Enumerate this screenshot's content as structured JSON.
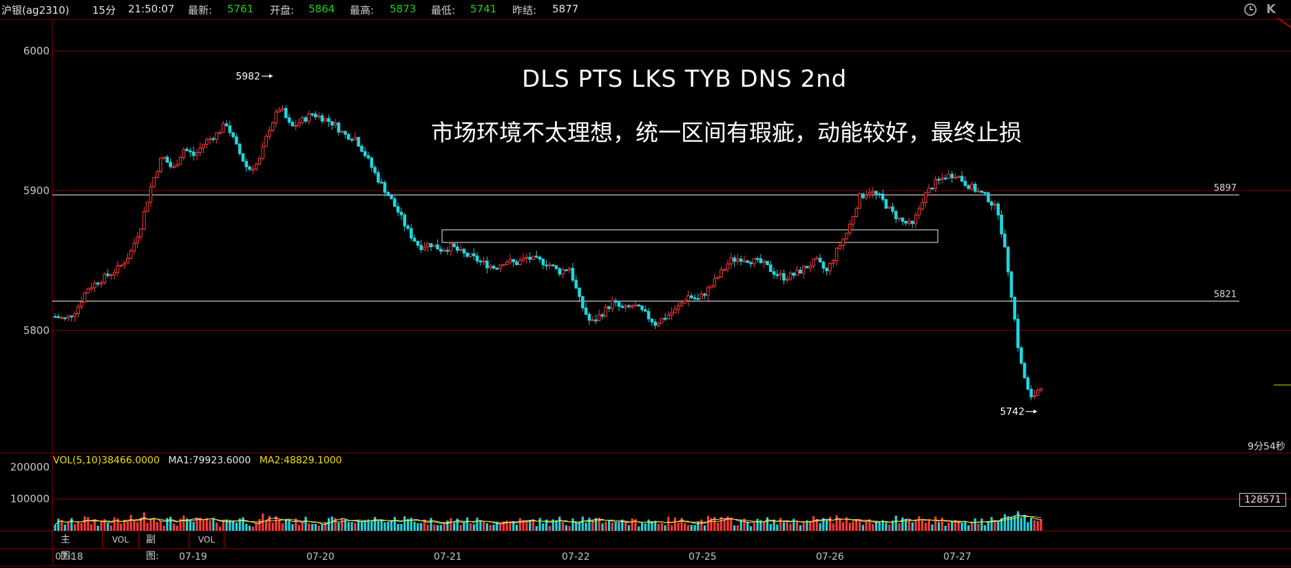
{
  "header": {
    "instrument": "沪银(ag2310)",
    "period": "15分",
    "time": "21:50:07",
    "latest_label": "最新:",
    "latest_value": "5761",
    "open_label": "开盘:",
    "open_value": "5864",
    "high_label": "最高:",
    "high_value": "5873",
    "low_label": "最低:",
    "low_value": "5741",
    "prev_label": "昨结:",
    "prev_value": "5877"
  },
  "toolbar": {
    "clock_icon": "clock-icon",
    "k_icon": "K"
  },
  "annotations": {
    "title": "DLS  PTS  LKS  TYB  DNS  2nd",
    "subtitle": "市场环境不太理想，统一区间有瑕疵，动能较好，最终止损",
    "high_marker": "5982",
    "low_marker": "5742",
    "level_upper": "5897",
    "level_lower": "5821",
    "countdown": "9分54秒"
  },
  "volume": {
    "legend_vol": "VOL(5,10)38466.0000",
    "legend_ma1": "MA1:79923.6000",
    "legend_ma2": "MA2:48829.1000",
    "current_box": "128571",
    "axis_labels": [
      "200000",
      "100000"
    ]
  },
  "bottom_bar": {
    "main_label": "主图:",
    "main_btn": "VOL",
    "sub_label": "副图:",
    "sub_btn": "VOL",
    "dates": [
      "07-18",
      "07-19",
      "07-20",
      "07-21",
      "07-22",
      "07-25",
      "07-26",
      "07-27"
    ]
  },
  "colors": {
    "up": "#ff3b3b",
    "down": "#1fd7e0",
    "grid": "#8a0000",
    "ma1": "#e8e8e8",
    "ma2": "#f0e000"
  },
  "chart_data": {
    "type": "candlestick",
    "title": "沪银(ag2310) 15分",
    "y_axis_ticks": [
      6000,
      5900,
      5800
    ],
    "ylim": [
      5710,
      6030
    ],
    "horizontal_levels": [
      5897,
      5821
    ],
    "range_box": {
      "from_day": "07-21",
      "to_day": "07-27",
      "top": 5872,
      "bottom": 5863
    },
    "days": [
      "07-18",
      "07-19",
      "07-20",
      "07-21",
      "07-22",
      "07-25",
      "07-26",
      "07-27"
    ],
    "close_path": [
      5810,
      5808,
      5815,
      5830,
      5835,
      5840,
      5845,
      5855,
      5875,
      5905,
      5925,
      5915,
      5930,
      5925,
      5935,
      5940,
      5948,
      5930,
      5915,
      5920,
      5945,
      5960,
      5945,
      5950,
      5955,
      5952,
      5948,
      5940,
      5938,
      5925,
      5910,
      5898,
      5885,
      5870,
      5860,
      5862,
      5858,
      5860,
      5855,
      5852,
      5848,
      5845,
      5850,
      5848,
      5852,
      5850,
      5848,
      5842,
      5845,
      5820,
      5805,
      5812,
      5820,
      5815,
      5818,
      5812,
      5805,
      5810,
      5815,
      5825,
      5822,
      5830,
      5840,
      5850,
      5852,
      5850,
      5848,
      5842,
      5838,
      5840,
      5845,
      5850,
      5842,
      5858,
      5872,
      5895,
      5900,
      5895,
      5885,
      5878,
      5875,
      5895,
      5905,
      5910,
      5912,
      5905,
      5900,
      5895,
      5885,
      5840,
      5780,
      5750,
      5761
    ],
    "max_marker": 5982,
    "min_marker": 5742,
    "volume_ma": {
      "ma1": 79923.6,
      "ma2": 48829.1,
      "last_volume": 128571,
      "ylim": [
        0,
        220000
      ]
    }
  }
}
